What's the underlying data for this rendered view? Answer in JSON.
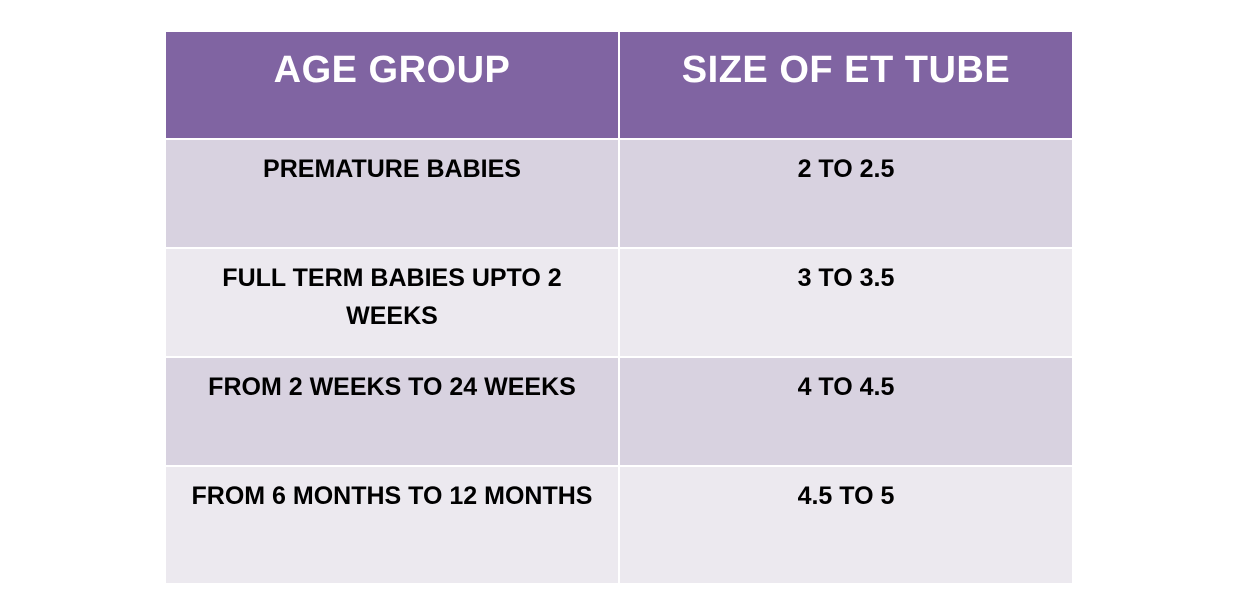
{
  "table": {
    "headers": [
      "AGE GROUP",
      "SIZE OF ET TUBE"
    ],
    "rows": [
      [
        "PREMATURE BABIES",
        "2 TO 2.5"
      ],
      [
        "FULL TERM BABIES UPTO 2 WEEKS",
        "3 TO 3.5"
      ],
      [
        "FROM 2 WEEKS TO 24 WEEKS",
        "4 TO 4.5"
      ],
      [
        "FROM 6 MONTHS TO 12 MONTHS",
        "4.5 TO 5"
      ]
    ]
  },
  "colors": {
    "header_background": "#8064a2",
    "header_text": "#ffffff",
    "row_band_dark": "#d8d2e0",
    "row_band_light": "#ece9ef",
    "body_text": "#000000"
  }
}
